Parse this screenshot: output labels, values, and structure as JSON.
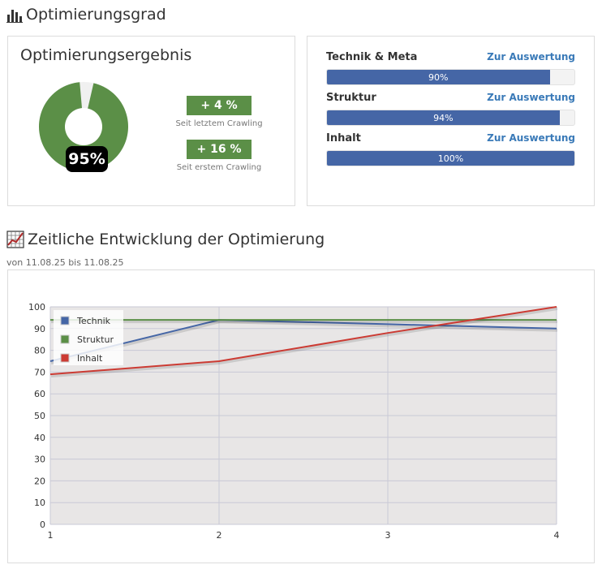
{
  "header": {
    "title": "Optimierungsgrad"
  },
  "result_panel": {
    "title": "Optimierungsergebnis",
    "percent_label": "95%",
    "percent_value": 95,
    "gain_last": "+ 4 %",
    "gain_last_caption": "Seit letztem Crawling",
    "gain_first": "+ 16 %",
    "gain_first_caption": "Seit erstem Crawling",
    "donut_color": "#5b8f47"
  },
  "metrics": [
    {
      "label": "Technik & Meta",
      "link": "Zur Auswertung",
      "value": 90,
      "value_label": "90%"
    },
    {
      "label": "Struktur",
      "link": "Zur Auswertung",
      "value": 94,
      "value_label": "94%"
    },
    {
      "label": "Inhalt",
      "link": "Zur Auswertung",
      "value": 100,
      "value_label": "100%"
    }
  ],
  "timeline": {
    "title": "Zeitliche Entwicklung der Optimierung",
    "date_range": "von 11.08.25 bis 11.08.25"
  },
  "chart_data": {
    "type": "line",
    "x": [
      1,
      2,
      3,
      4
    ],
    "xlim": [
      1,
      4
    ],
    "ylim": [
      0,
      100
    ],
    "y_ticks": [
      0,
      10,
      20,
      30,
      40,
      50,
      60,
      70,
      80,
      90,
      100
    ],
    "x_ticks": [
      1,
      2,
      3,
      4
    ],
    "grid": true,
    "legend_position": "top-left",
    "series": [
      {
        "name": "Technik",
        "color": "#4566a6",
        "values": [
          75,
          94,
          92,
          90
        ]
      },
      {
        "name": "Struktur",
        "color": "#5b8f47",
        "values": [
          94,
          94,
          94,
          94
        ]
      },
      {
        "name": "Inhalt",
        "color": "#cc3b33",
        "values": [
          69,
          75,
          88,
          100
        ]
      }
    ]
  }
}
